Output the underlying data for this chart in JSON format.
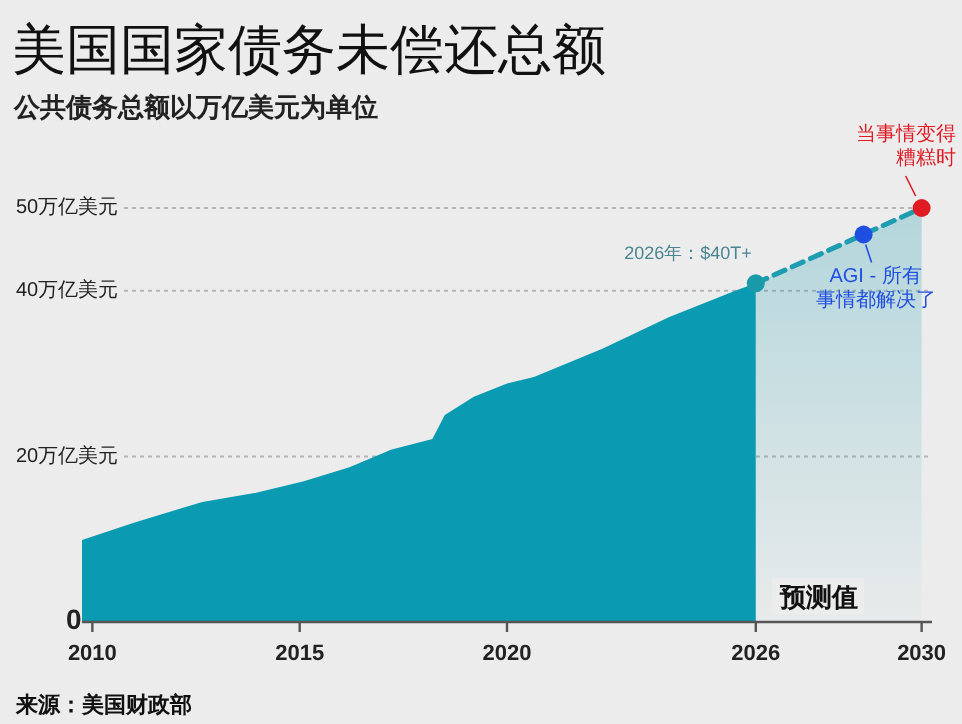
{
  "chart_data": {
    "type": "area",
    "title": "美国国家债务未偿还总额",
    "subtitle": "公共债务总额以万亿美元为单位",
    "xlim": [
      2009.75,
      2030.25
    ],
    "ylim": [
      0,
      50
    ],
    "xticks": [
      2010,
      2015,
      2020,
      2026,
      2030
    ],
    "yticks": [
      0,
      {
        "value": 20,
        "label": "20万亿美元"
      },
      {
        "value": 40,
        "label": "40万亿美元"
      },
      {
        "value": 50,
        "label": "50万亿美元"
      }
    ],
    "grid": "y",
    "series": [
      {
        "type": "area",
        "color": "#0a9bb3",
        "x": [
          2009.75,
          2011.0,
          2012.65,
          2013.95,
          2015.1,
          2016.2,
          2017.2,
          2018.2,
          2018.5,
          2019.2,
          2020.0,
          2020.65,
          2022.3,
          2023.9,
          2025.55,
          2026.0
        ],
        "values": [
          9.9,
          12.0,
          14.5,
          15.6,
          17.0,
          18.7,
          20.8,
          22.1,
          25.0,
          27.2,
          28.8,
          29.6,
          33.0,
          36.8,
          40.1,
          40.9
        ]
      },
      {
        "type": "area",
        "color": "#1f9db0",
        "line_style": "dashed",
        "marker": "circle",
        "x": [
          2026.0,
          2028.6,
          2030.0
        ],
        "values": [
          40.9,
          46.8,
          50
        ],
        "colors": [
          "#1a9aa8",
          "#1f4fe0",
          "#e01b24"
        ]
      }
    ],
    "annotations": [
      {
        "text": "2026年：$40T+",
        "x": 2026.0,
        "y": 40.9
      },
      {
        "text": "AGI - 所有事情都解决了",
        "x": 2028.6,
        "y": 46.8
      },
      {
        "text": "当事情变得糟糕时",
        "x": 2030.0,
        "y": 50
      },
      "预测值",
      "来源：美国财政部"
    ]
  }
}
